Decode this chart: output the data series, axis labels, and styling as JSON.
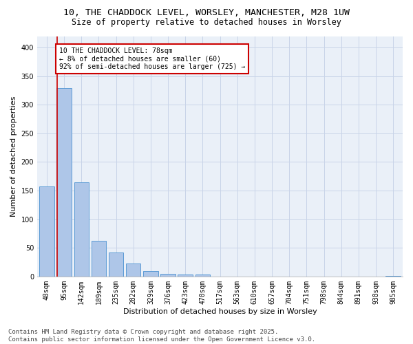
{
  "title1": "10, THE CHADDOCK LEVEL, WORSLEY, MANCHESTER, M28 1UW",
  "title2": "Size of property relative to detached houses in Worsley",
  "xlabel": "Distribution of detached houses by size in Worsley",
  "ylabel": "Number of detached properties",
  "categories": [
    "48sqm",
    "95sqm",
    "142sqm",
    "189sqm",
    "235sqm",
    "282sqm",
    "329sqm",
    "376sqm",
    "423sqm",
    "470sqm",
    "517sqm",
    "563sqm",
    "610sqm",
    "657sqm",
    "704sqm",
    "751sqm",
    "798sqm",
    "844sqm",
    "891sqm",
    "938sqm",
    "985sqm"
  ],
  "values": [
    157,
    329,
    164,
    62,
    42,
    23,
    10,
    5,
    3,
    3,
    0,
    0,
    0,
    0,
    0,
    0,
    0,
    0,
    0,
    0,
    1
  ],
  "bar_color": "#aec6e8",
  "bar_edge_color": "#5b9bd5",
  "annotation_text": "10 THE CHADDOCK LEVEL: 78sqm\n← 8% of detached houses are smaller (60)\n92% of semi-detached houses are larger (725) →",
  "annotation_box_color": "#ffffff",
  "annotation_box_edge": "#cc0000",
  "vline_color": "#cc0000",
  "vline_x": 0.62,
  "ylim": [
    0,
    420
  ],
  "yticks": [
    0,
    50,
    100,
    150,
    200,
    250,
    300,
    350,
    400
  ],
  "grid_color": "#c8d4e8",
  "bg_color": "#eaf0f8",
  "footer": "Contains HM Land Registry data © Crown copyright and database right 2025.\nContains public sector information licensed under the Open Government Licence v3.0.",
  "title_fontsize": 9.5,
  "subtitle_fontsize": 8.5,
  "axis_label_fontsize": 8,
  "tick_fontsize": 7,
  "annotation_fontsize": 7,
  "footer_fontsize": 6.5
}
